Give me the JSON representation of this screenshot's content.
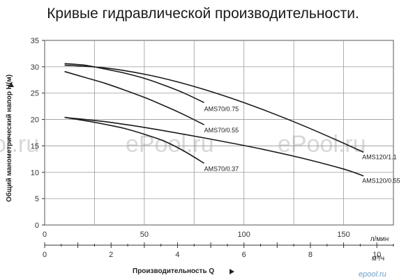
{
  "title": "Кривые гидравлической производительности.",
  "watermarks": [
    "ol.ru",
    "ePool.ru",
    "ePool.ru"
  ],
  "brand_mark": "epool.ru",
  "chart_data": {
    "type": "line",
    "title": "Кривые гидравлической производительности.",
    "ylabel": "Общий манометрический напор  H(м)",
    "xlabel": "Производительность  Q",
    "x_unit": "л/мин",
    "x2_unit": "м³/ч",
    "xlim": [
      0,
      175
    ],
    "ylim": [
      0,
      35
    ],
    "x_ticks": [
      0,
      50,
      100,
      150
    ],
    "x2_ticks": [
      0,
      2,
      4,
      6,
      8,
      10
    ],
    "y_ticks": [
      0,
      5,
      10,
      15,
      20,
      25,
      30,
      35
    ],
    "grid": true,
    "series": [
      {
        "name": "AMS70/0.75",
        "x": [
          10,
          20,
          30,
          40,
          50,
          60,
          70,
          80
        ],
        "y": [
          30.6,
          30.3,
          29.6,
          28.8,
          27.8,
          26.5,
          25.0,
          23.2
        ]
      },
      {
        "name": "AMS70/0.55",
        "x": [
          10,
          20,
          30,
          40,
          50,
          60,
          70,
          80
        ],
        "y": [
          29.1,
          28.0,
          26.9,
          25.6,
          24.2,
          22.6,
          20.9,
          19.0
        ]
      },
      {
        "name": "AMS70/0.37",
        "x": [
          10,
          20,
          30,
          40,
          50,
          60,
          70,
          80
        ],
        "y": [
          20.4,
          19.8,
          19.1,
          18.3,
          17.2,
          15.9,
          14.0,
          11.7
        ]
      },
      {
        "name": "AMS120/1.1",
        "x": [
          10,
          30,
          50,
          70,
          90,
          110,
          130,
          150,
          160
        ],
        "y": [
          30.3,
          29.8,
          28.6,
          26.8,
          24.5,
          21.8,
          18.8,
          15.5,
          13.8
        ]
      },
      {
        "name": "AMS120/0.55",
        "x": [
          10,
          30,
          50,
          70,
          90,
          110,
          130,
          150,
          160
        ],
        "y": [
          20.4,
          19.6,
          18.5,
          17.2,
          15.8,
          14.3,
          12.6,
          10.6,
          9.3
        ]
      }
    ],
    "legend": "labels on curves"
  }
}
